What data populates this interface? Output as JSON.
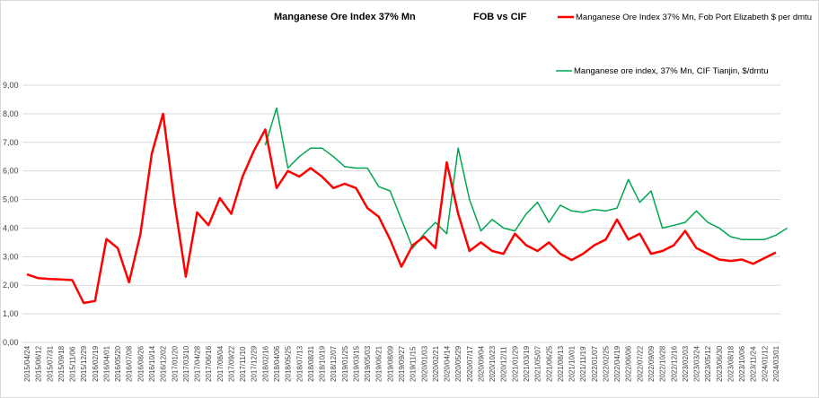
{
  "chart_data": {
    "type": "line",
    "title": "Manganese Ore Index 37% Mn",
    "subtitle": "FOB vs CIF",
    "ylim": [
      0,
      9
    ],
    "yticks": [
      "0,00",
      "1,00",
      "2,00",
      "3,00",
      "4,00",
      "5,00",
      "6,00",
      "7,00",
      "8,00",
      "9,00"
    ],
    "grid": "horizontal",
    "legend_position": "top-right",
    "x_tick_labels": [
      "2015/04/24",
      "2015/06/12",
      "2015/07/31",
      "2015/09/18",
      "2015/11/06",
      "2015/12/29",
      "2016/02/19",
      "2016/04/01",
      "2016/05/20",
      "2016/07/08",
      "2016/08/26",
      "2016/10/14",
      "2016/12/02",
      "2017/01/20",
      "2017/03/10",
      "2017/04/28",
      "2017/06/16",
      "2017/08/04",
      "2017/09/22",
      "2017/11/10",
      "2017/12/29",
      "2018/02/16",
      "2018/04/06",
      "2018/05/25",
      "2018/07/13",
      "2018/08/31",
      "2018/10/19",
      "2018/12/07",
      "2019/01/25",
      "2019/03/15",
      "2019/05/03",
      "2019/06/21",
      "2019/08/09",
      "2019/09/27",
      "2019/11/15",
      "2020/01/03",
      "2020/02/21",
      "2020/04/14",
      "2020/05/29",
      "2020/07/17",
      "2020/09/04",
      "2020/10/23",
      "2020/12/11",
      "2021/01/29",
      "2021/03/19",
      "2021/05/07",
      "2021/06/25",
      "2021/08/13",
      "2021/10/01",
      "2021/11/19",
      "2022/01/07",
      "2022/02/25",
      "2022/04/19",
      "2022/06/06",
      "2022/07/22",
      "2022/09/09",
      "2022/10/28",
      "2022/12/16",
      "2023/02/03",
      "2023/03/24",
      "2023/05/12",
      "2023/06/30",
      "2023/08/18",
      "2023/10/06",
      "2023/11/24",
      "2024/01/12",
      "2024/03/01"
    ],
    "series": [
      {
        "name": "Manganese Ore Index 37% Mn, Fob Port Elizabeth $ per dmtu",
        "color": "#ff0000",
        "values": [
          2.38,
          2.25,
          2.22,
          2.2,
          2.18,
          1.38,
          1.45,
          3.62,
          3.3,
          2.1,
          3.8,
          6.6,
          8.0,
          4.9,
          2.3,
          4.55,
          4.1,
          5.05,
          4.5,
          5.8,
          6.7,
          7.45,
          5.4,
          6.0,
          5.8,
          6.1,
          5.8,
          5.4,
          5.55,
          5.4,
          4.7,
          4.4,
          3.6,
          2.65,
          3.4,
          3.7,
          3.3,
          6.3,
          4.5,
          3.2,
          3.5,
          3.2,
          3.1,
          3.8,
          3.4,
          3.2,
          3.5,
          3.1,
          2.88,
          3.1,
          3.4,
          3.6,
          4.3,
          3.6,
          3.8,
          3.1,
          3.2,
          3.4,
          3.9,
          3.3,
          3.1,
          2.9,
          2.85,
          2.9,
          2.75,
          2.95,
          3.15
        ]
      },
      {
        "name": "Manganese ore index, 37% Mn, CIF Tianjin, $/dmtu",
        "color": "#00a64f",
        "start_index": 21,
        "values": [
          6.9,
          8.2,
          6.1,
          6.5,
          6.8,
          6.8,
          6.5,
          6.15,
          6.1,
          6.1,
          5.45,
          5.3,
          4.3,
          3.3,
          3.8,
          4.2,
          3.8,
          6.8,
          5.0,
          3.9,
          4.3,
          4.0,
          3.9,
          4.5,
          4.9,
          4.2,
          4.8,
          4.6,
          4.55,
          4.65,
          4.6,
          4.7,
          5.7,
          4.9,
          5.3,
          4.0,
          4.1,
          4.2,
          4.6,
          4.2,
          4.0,
          3.7,
          3.6,
          3.6,
          3.6,
          3.75,
          4.0
        ]
      }
    ]
  }
}
